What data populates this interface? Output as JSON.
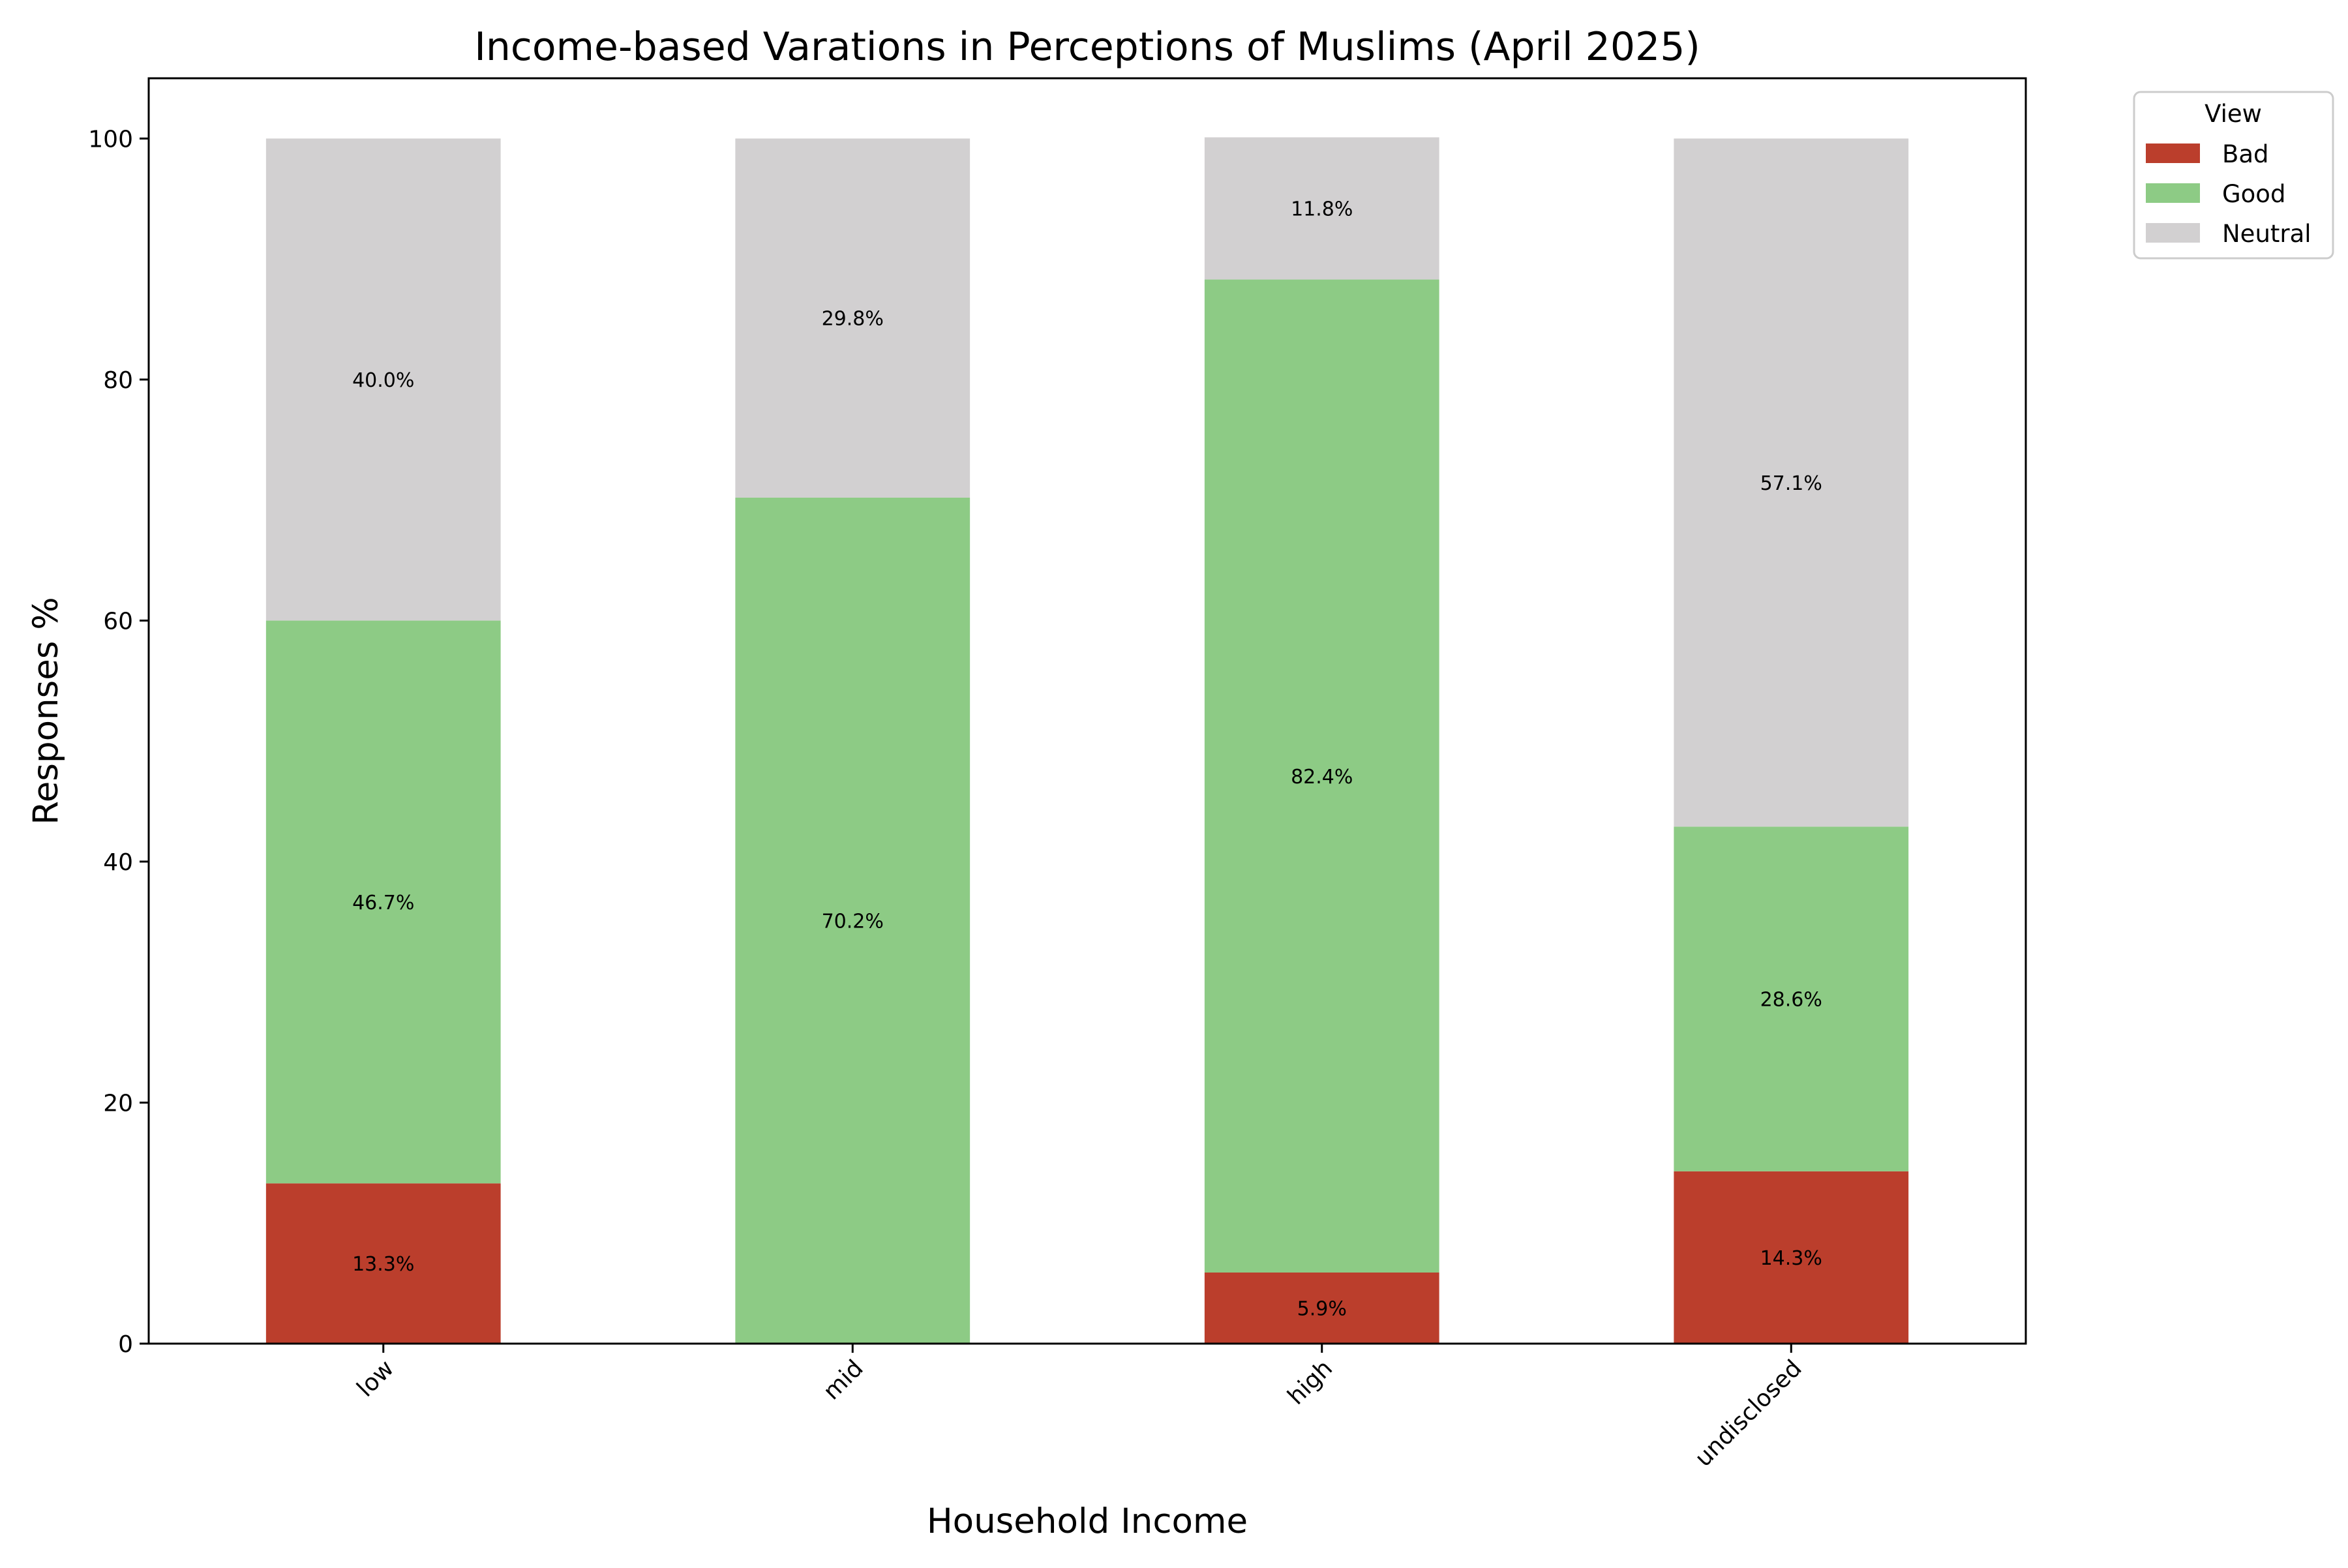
{
  "chart_data": {
    "type": "bar",
    "stacked": true,
    "title": "Income-based Varations in Perceptions of Muslims (April 2025)",
    "xlabel": "Household Income",
    "ylabel": "Responses %",
    "ylim": [
      0,
      105
    ],
    "yticks": [
      "0",
      "20",
      "40",
      "60",
      "80",
      "100"
    ],
    "grid": false,
    "legend_placement": "outside-top-right",
    "legend_title": "View",
    "categories": [
      "low",
      "mid",
      "high",
      "undisclosed"
    ],
    "series": [
      {
        "name": "Bad",
        "color": "#bb3e2c",
        "values": [
          13.3,
          0.0,
          5.9,
          14.3
        ],
        "labels": [
          "13.3%",
          "",
          "5.9%",
          "14.3%"
        ]
      },
      {
        "name": "Good",
        "color": "#8dcb85",
        "values": [
          46.7,
          70.2,
          82.4,
          28.6
        ],
        "labels": [
          "46.7%",
          "70.2%",
          "82.4%",
          "28.6%"
        ]
      },
      {
        "name": "Neutral",
        "color": "#d2d0d1",
        "values": [
          40.0,
          29.8,
          11.8,
          57.1
        ],
        "labels": [
          "40.0%",
          "29.8%",
          "11.8%",
          "57.1%"
        ]
      }
    ]
  }
}
